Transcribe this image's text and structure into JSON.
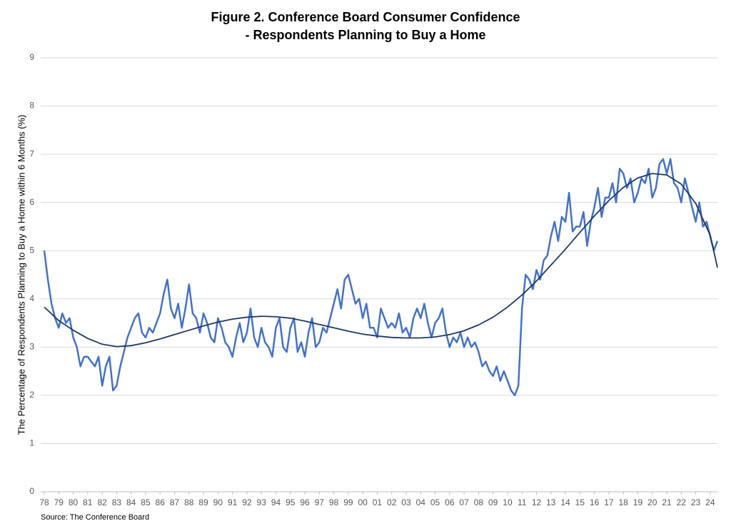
{
  "chart_data": {
    "type": "line",
    "title": [
      "Figure 2. Conference Board Consumer Confidence",
      "- Respondents Planning to Buy a Home"
    ],
    "y_label": "The Percentage of Respondents Planning to Buy a Home within 6 Months (%)",
    "source": "Source: The Conference Board",
    "grid": true,
    "ylim": [
      0,
      9
    ],
    "yticks": [
      0,
      1,
      2,
      3,
      4,
      5,
      6,
      7,
      8,
      9
    ],
    "xlim": [
      1978,
      2024.5
    ],
    "xticks": [
      {
        "value": 1978,
        "label": "78"
      },
      {
        "value": 1979,
        "label": "79"
      },
      {
        "value": 1980,
        "label": "80"
      },
      {
        "value": 1981,
        "label": "81"
      },
      {
        "value": 1982,
        "label": "82"
      },
      {
        "value": 1983,
        "label": "83"
      },
      {
        "value": 1984,
        "label": "84"
      },
      {
        "value": 1985,
        "label": "85"
      },
      {
        "value": 1986,
        "label": "86"
      },
      {
        "value": 1987,
        "label": "87"
      },
      {
        "value": 1988,
        "label": "88"
      },
      {
        "value": 1989,
        "label": "89"
      },
      {
        "value": 1990,
        "label": "90"
      },
      {
        "value": 1991,
        "label": "91"
      },
      {
        "value": 1992,
        "label": "92"
      },
      {
        "value": 1993,
        "label": "93"
      },
      {
        "value": 1994,
        "label": "94"
      },
      {
        "value": 1995,
        "label": "95"
      },
      {
        "value": 1996,
        "label": "96"
      },
      {
        "value": 1997,
        "label": "97"
      },
      {
        "value": 1998,
        "label": "98"
      },
      {
        "value": 1999,
        "label": "99"
      },
      {
        "value": 2000,
        "label": "00"
      },
      {
        "value": 2001,
        "label": "01"
      },
      {
        "value": 2002,
        "label": "02"
      },
      {
        "value": 2003,
        "label": "03"
      },
      {
        "value": 2004,
        "label": "04"
      },
      {
        "value": 2005,
        "label": "05"
      },
      {
        "value": 2006,
        "label": "06"
      },
      {
        "value": 2007,
        "label": "07"
      },
      {
        "value": 2008,
        "label": "08"
      },
      {
        "value": 2009,
        "label": "09"
      },
      {
        "value": 2010,
        "label": "10"
      },
      {
        "value": 2011,
        "label": "11"
      },
      {
        "value": 2012,
        "label": "12"
      },
      {
        "value": 2013,
        "label": "13"
      },
      {
        "value": 2014,
        "label": "14"
      },
      {
        "value": 2015,
        "label": "15"
      },
      {
        "value": 2016,
        "label": "16"
      },
      {
        "value": 2017,
        "label": "17"
      },
      {
        "value": 2018,
        "label": "18"
      },
      {
        "value": 2019,
        "label": "19"
      },
      {
        "value": 2020,
        "label": "20"
      },
      {
        "value": 2021,
        "label": "21"
      },
      {
        "value": 2022,
        "label": "22"
      },
      {
        "value": 2023,
        "label": "23"
      },
      {
        "value": 2024,
        "label": "24"
      }
    ],
    "series": [
      {
        "color": "#4472c4",
        "width": 2.5,
        "x": [
          1978,
          1978.25,
          1978.5,
          1978.75,
          1979,
          1979.25,
          1979.5,
          1979.75,
          1980,
          1980.25,
          1980.5,
          1980.75,
          1981,
          1981.25,
          1981.5,
          1981.75,
          1982,
          1982.25,
          1982.5,
          1982.75,
          1983,
          1983.25,
          1983.5,
          1983.75,
          1984,
          1984.25,
          1984.5,
          1984.75,
          1985,
          1985.25,
          1985.5,
          1985.75,
          1986,
          1986.25,
          1986.5,
          1986.75,
          1987,
          1987.25,
          1987.5,
          1987.75,
          1988,
          1988.25,
          1988.5,
          1988.75,
          1989,
          1989.25,
          1989.5,
          1989.75,
          1990,
          1990.25,
          1990.5,
          1990.75,
          1991,
          1991.25,
          1991.5,
          1991.75,
          1992,
          1992.25,
          1992.5,
          1992.75,
          1993,
          1993.25,
          1993.5,
          1993.75,
          1994,
          1994.25,
          1994.5,
          1994.75,
          1995,
          1995.25,
          1995.5,
          1995.75,
          1996,
          1996.25,
          1996.5,
          1996.75,
          1997,
          1997.25,
          1997.5,
          1997.75,
          1998,
          1998.25,
          1998.5,
          1998.75,
          1999,
          1999.25,
          1999.5,
          1999.75,
          2000,
          2000.25,
          2000.5,
          2000.75,
          2001,
          2001.25,
          2001.5,
          2001.75,
          2002,
          2002.25,
          2002.5,
          2002.75,
          2003,
          2003.25,
          2003.5,
          2003.75,
          2004,
          2004.25,
          2004.5,
          2004.75,
          2005,
          2005.25,
          2005.5,
          2005.75,
          2006,
          2006.25,
          2006.5,
          2006.75,
          2007,
          2007.25,
          2007.5,
          2007.75,
          2008,
          2008.25,
          2008.5,
          2008.75,
          2009,
          2009.25,
          2009.5,
          2009.75,
          2010,
          2010.25,
          2010.5,
          2010.75,
          2011,
          2011.25,
          2011.5,
          2011.75,
          2012,
          2012.25,
          2012.5,
          2012.75,
          2013,
          2013.25,
          2013.5,
          2013.75,
          2014,
          2014.25,
          2014.5,
          2014.75,
          2015,
          2015.25,
          2015.5,
          2015.75,
          2016,
          2016.25,
          2016.5,
          2016.75,
          2017,
          2017.25,
          2017.5,
          2017.75,
          2018,
          2018.25,
          2018.5,
          2018.75,
          2019,
          2019.25,
          2019.5,
          2019.75,
          2020,
          2020.25,
          2020.5,
          2020.75,
          2021,
          2021.25,
          2021.5,
          2021.75,
          2022,
          2022.25,
          2022.5,
          2022.75,
          2023,
          2023.25,
          2023.5,
          2023.75,
          2024,
          2024.25,
          2024.5
        ],
        "values": [
          5.0,
          4.4,
          3.9,
          3.6,
          3.4,
          3.7,
          3.5,
          3.6,
          3.2,
          3.0,
          2.6,
          2.8,
          2.8,
          2.7,
          2.6,
          2.8,
          2.2,
          2.6,
          2.8,
          2.1,
          2.2,
          2.6,
          2.9,
          3.2,
          3.4,
          3.6,
          3.7,
          3.3,
          3.2,
          3.4,
          3.3,
          3.5,
          3.7,
          4.1,
          4.4,
          3.8,
          3.6,
          3.9,
          3.4,
          3.8,
          4.3,
          3.7,
          3.6,
          3.3,
          3.7,
          3.5,
          3.2,
          3.1,
          3.6,
          3.4,
          3.1,
          3.0,
          2.8,
          3.2,
          3.5,
          3.1,
          3.3,
          3.8,
          3.2,
          3.0,
          3.4,
          3.1,
          3.0,
          2.8,
          3.4,
          3.6,
          3.0,
          2.9,
          3.4,
          3.6,
          2.9,
          3.1,
          2.8,
          3.3,
          3.6,
          3.0,
          3.1,
          3.4,
          3.3,
          3.6,
          3.9,
          4.2,
          3.8,
          4.4,
          4.5,
          4.2,
          3.9,
          4.0,
          3.6,
          3.9,
          3.4,
          3.4,
          3.2,
          3.8,
          3.6,
          3.4,
          3.5,
          3.4,
          3.7,
          3.3,
          3.4,
          3.2,
          3.6,
          3.8,
          3.6,
          3.9,
          3.5,
          3.2,
          3.5,
          3.6,
          3.8,
          3.3,
          3.0,
          3.2,
          3.1,
          3.3,
          3.0,
          3.2,
          3.0,
          3.1,
          2.9,
          2.6,
          2.7,
          2.5,
          2.4,
          2.6,
          2.3,
          2.5,
          2.3,
          2.1,
          2.0,
          2.2,
          3.8,
          4.5,
          4.4,
          4.2,
          4.6,
          4.4,
          4.8,
          4.9,
          5.3,
          5.6,
          5.2,
          5.7,
          5.6,
          6.2,
          5.4,
          5.5,
          5.5,
          5.8,
          5.1,
          5.6,
          5.9,
          6.3,
          5.7,
          6.1,
          6.1,
          6.4,
          6.0,
          6.7,
          6.6,
          6.3,
          6.5,
          6.0,
          6.2,
          6.5,
          6.4,
          6.7,
          6.1,
          6.3,
          6.8,
          6.9,
          6.6,
          6.9,
          6.4,
          6.3,
          6.0,
          6.5,
          6.2,
          5.9,
          5.6,
          6.0,
          5.5,
          5.6,
          5.3,
          5.0,
          5.2
        ]
      },
      {
        "color": "#1f3864",
        "width": 1.8,
        "x": [
          1978,
          1979,
          1980,
          1981,
          1982,
          1983,
          1984,
          1985,
          1986,
          1987,
          1988,
          1989,
          1990,
          1991,
          1992,
          1993,
          1994,
          1995,
          1996,
          1997,
          1998,
          1999,
          2000,
          2001,
          2002,
          2003,
          2004,
          2005,
          2006,
          2007,
          2008,
          2009,
          2010,
          2011,
          2012,
          2013,
          2014,
          2015,
          2016,
          2017,
          2018,
          2019,
          2020,
          2021,
          2022,
          2023,
          2024,
          2024.5
        ],
        "values": [
          3.83,
          3.55,
          3.35,
          3.18,
          3.06,
          3.01,
          3.03,
          3.09,
          3.17,
          3.26,
          3.35,
          3.44,
          3.52,
          3.58,
          3.62,
          3.64,
          3.63,
          3.6,
          3.54,
          3.47,
          3.4,
          3.33,
          3.27,
          3.23,
          3.2,
          3.19,
          3.19,
          3.21,
          3.26,
          3.34,
          3.46,
          3.62,
          3.83,
          4.08,
          4.37,
          4.7,
          5.03,
          5.38,
          5.72,
          6.04,
          6.31,
          6.51,
          6.6,
          6.57,
          6.38,
          5.98,
          5.32,
          4.65
        ]
      }
    ]
  }
}
